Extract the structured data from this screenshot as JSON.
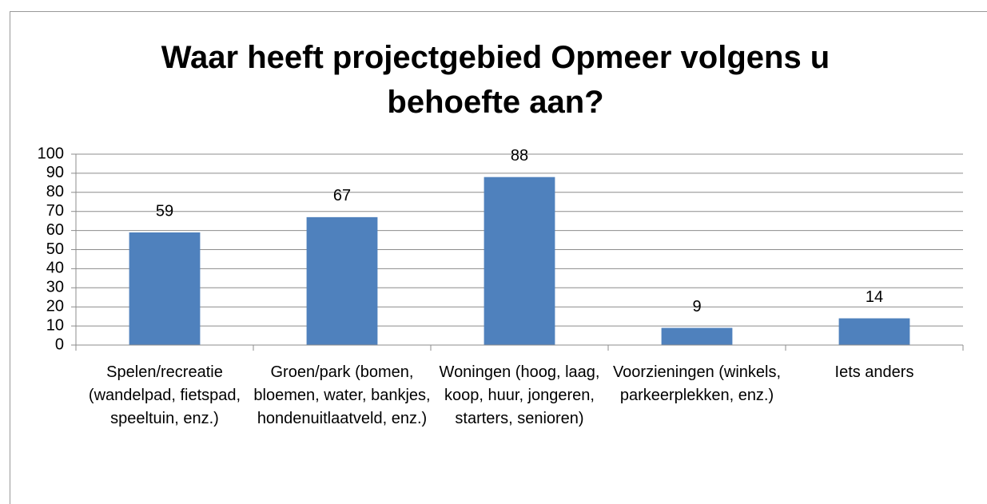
{
  "chart_data": {
    "type": "bar",
    "title": "Waar heeft projectgebied Opmeer volgens u behoefte aan?",
    "categories": [
      "Spelen/recreatie (wandelpad, fietspad, speeltuin, enz.)",
      "Groen/park (bomen, bloemen, water, bankjes, hondenuitlaatveld, enz.)",
      "Woningen (hoog, laag, koop, huur, jongeren, starters, senioren)",
      "Voorzieningen (winkels, parkeerplekken, enz.)",
      "Iets anders"
    ],
    "values": [
      59,
      67,
      88,
      9,
      14
    ],
    "color": "#4f81bd",
    "ylim": [
      0,
      100
    ],
    "yticks": [
      0,
      10,
      20,
      30,
      40,
      50,
      60,
      70,
      80,
      90,
      100
    ],
    "grid": true
  }
}
